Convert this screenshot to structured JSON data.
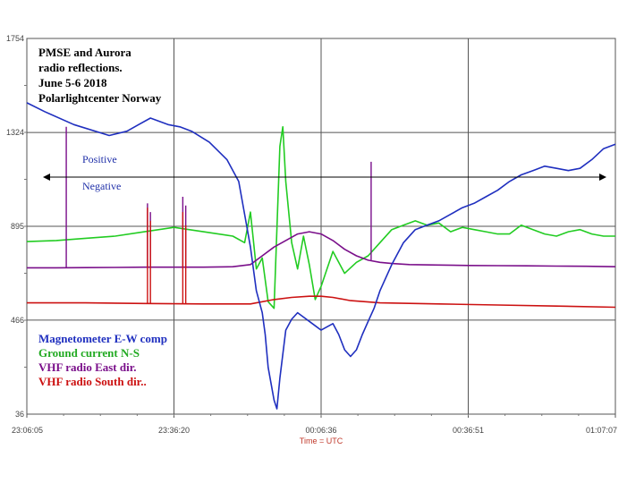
{
  "chart_data": {
    "type": "line",
    "title_lines": [
      "PMSE and Aurora",
      "radio reflections.",
      "June 5-6 2018",
      "Polarlightcenter  Norway"
    ],
    "xlabel": "Time = UTC",
    "x_ticks": [
      "23:06:05",
      "23:36:20",
      "00:06:36",
      "00:36:51",
      "01:07:07"
    ],
    "y_ticks": [
      1754,
      1324,
      895,
      466,
      36
    ],
    "ylim": [
      36,
      1754
    ],
    "grid": true,
    "annotation_positive": "Positive",
    "annotation_negative": "Negative",
    "legend_placement": "bottom-left",
    "series": [
      {
        "name": "Magnetometer E-W comp",
        "color": "#1f2fbf",
        "x": [
          0,
          0.03,
          0.08,
          0.14,
          0.17,
          0.19,
          0.21,
          0.24,
          0.26,
          0.28,
          0.31,
          0.34,
          0.36,
          0.37,
          0.38,
          0.39,
          0.4,
          0.405,
          0.41,
          0.42,
          0.425,
          0.43,
          0.44,
          0.45,
          0.46,
          0.47,
          0.48,
          0.49,
          0.5,
          0.52,
          0.53,
          0.54,
          0.55,
          0.56,
          0.57,
          0.58,
          0.59,
          0.6,
          0.62,
          0.64,
          0.66,
          0.68,
          0.7,
          0.72,
          0.74,
          0.76,
          0.78,
          0.8,
          0.82,
          0.84,
          0.86,
          0.88,
          0.9,
          0.92,
          0.94,
          0.96,
          0.98,
          1.0
        ],
        "y": [
          1460,
          1420,
          1360,
          1310,
          1330,
          1360,
          1390,
          1360,
          1350,
          1330,
          1280,
          1200,
          1100,
          950,
          800,
          600,
          500,
          400,
          250,
          100,
          60,
          200,
          420,
          470,
          500,
          480,
          460,
          440,
          420,
          450,
          400,
          330,
          300,
          330,
          400,
          460,
          520,
          600,
          720,
          820,
          880,
          900,
          920,
          950,
          980,
          1000,
          1030,
          1060,
          1100,
          1130,
          1150,
          1170,
          1160,
          1150,
          1160,
          1200,
          1250,
          1270
        ]
      },
      {
        "name": "Ground current N-S",
        "color": "#22cc22",
        "x": [
          0,
          0.05,
          0.1,
          0.15,
          0.2,
          0.25,
          0.3,
          0.35,
          0.37,
          0.38,
          0.39,
          0.4,
          0.41,
          0.42,
          0.43,
          0.435,
          0.44,
          0.45,
          0.46,
          0.47,
          0.48,
          0.49,
          0.5,
          0.52,
          0.54,
          0.56,
          0.58,
          0.6,
          0.62,
          0.64,
          0.66,
          0.68,
          0.7,
          0.72,
          0.74,
          0.76,
          0.78,
          0.8,
          0.82,
          0.84,
          0.86,
          0.88,
          0.9,
          0.92,
          0.94,
          0.96,
          0.98,
          1.0
        ],
        "y": [
          825,
          830,
          840,
          850,
          870,
          890,
          870,
          850,
          820,
          960,
          700,
          750,
          550,
          520,
          1260,
          1350,
          1100,
          820,
          700,
          850,
          720,
          560,
          620,
          780,
          680,
          730,
          760,
          820,
          880,
          900,
          920,
          900,
          910,
          870,
          890,
          880,
          870,
          860,
          860,
          900,
          880,
          860,
          850,
          870,
          880,
          860,
          850,
          850
        ]
      },
      {
        "name": "VHF radio East dir.",
        "color": "#7a0f8a",
        "x": [
          0,
          0.05,
          0.1,
          0.15,
          0.2,
          0.25,
          0.3,
          0.35,
          0.38,
          0.4,
          0.42,
          0.44,
          0.46,
          0.48,
          0.5,
          0.52,
          0.54,
          0.56,
          0.58,
          0.6,
          0.62,
          0.65,
          0.7,
          0.75,
          0.8,
          0.85,
          0.9,
          0.95,
          1.0
        ],
        "y": [
          705,
          705,
          706,
          707,
          708,
          708,
          708,
          710,
          720,
          760,
          800,
          830,
          860,
          870,
          860,
          830,
          790,
          760,
          740,
          730,
          725,
          720,
          718,
          716,
          715,
          714,
          713,
          712,
          710
        ]
      },
      {
        "name": "VHF radio South dir..",
        "color": "#cc1111",
        "x": [
          0,
          0.1,
          0.2,
          0.3,
          0.38,
          0.42,
          0.45,
          0.48,
          0.5,
          0.52,
          0.55,
          0.6,
          0.7,
          0.8,
          0.9,
          1.0
        ],
        "y": [
          545,
          545,
          542,
          540,
          540,
          560,
          570,
          575,
          575,
          570,
          555,
          545,
          540,
          535,
          530,
          525
        ]
      }
    ],
    "spikes": [
      {
        "series": 2,
        "x": 0.067,
        "y": 1350
      },
      {
        "series": 2,
        "x": 0.205,
        "y": 1000
      },
      {
        "series": 2,
        "x": 0.21,
        "y": 960
      },
      {
        "series": 2,
        "x": 0.265,
        "y": 1030
      },
      {
        "series": 2,
        "x": 0.27,
        "y": 990
      },
      {
        "series": 2,
        "x": 0.585,
        "y": 1190
      },
      {
        "series": 3,
        "x": 0.205,
        "y": 980
      },
      {
        "series": 3,
        "x": 0.21,
        "y": 920
      },
      {
        "series": 3,
        "x": 0.265,
        "y": 960
      },
      {
        "series": 3,
        "x": 0.27,
        "y": 900
      }
    ]
  }
}
